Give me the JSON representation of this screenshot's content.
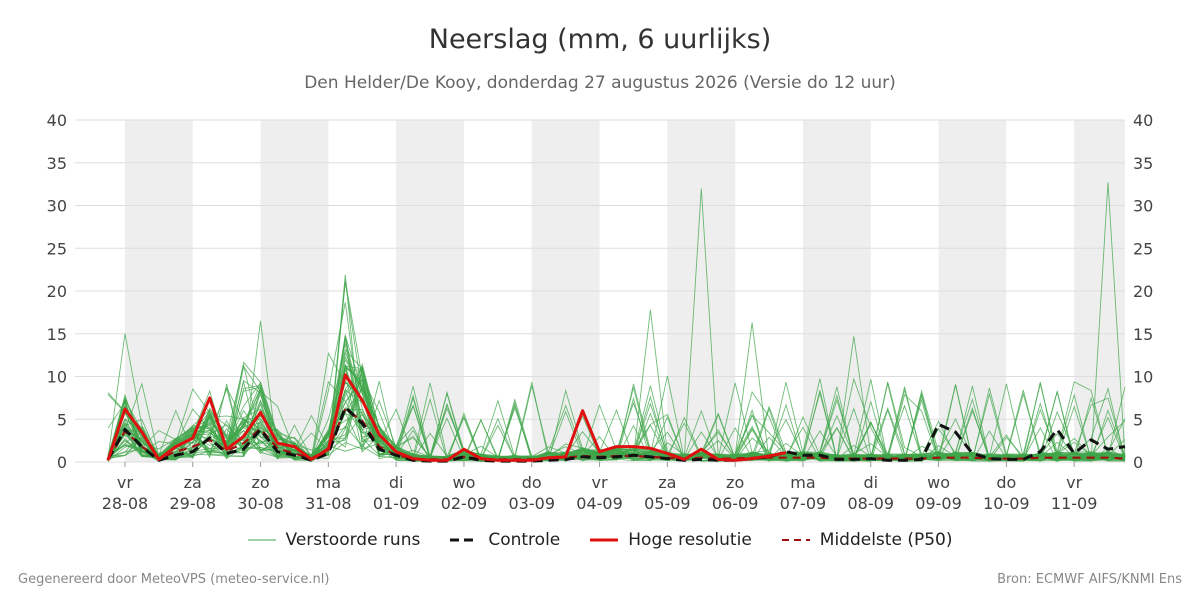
{
  "title": "Neerslag (mm, 6 uurlijks)",
  "subtitle": "Den Helder/De Kooy, donderdag 27 augustus 2026 (Versie do 12 uur)",
  "footer": {
    "left": "Gegenereerd door MeteoVPS (meteo-service.nl)",
    "right": "Bron: ECMWF AIFS/KNMI Ens"
  },
  "legend": [
    {
      "label": "Verstoorde runs",
      "color": "#3fa64a",
      "style": "thin"
    },
    {
      "label": "Controle",
      "color": "#111111",
      "style": "dashed-thick"
    },
    {
      "label": "Hoge resolutie",
      "color": "#e01010",
      "style": "solid-thick"
    },
    {
      "label": "Middelste (P50)",
      "color": "#a01010",
      "style": "dashed"
    }
  ],
  "colors": {
    "ensemble": "#3fa64a",
    "control": "#111111",
    "hires": "#e01010",
    "median": "#a01010",
    "weekend_band": "#eeeeee",
    "grid": "#dddddd"
  },
  "chart_data": {
    "type": "line",
    "step_hours": 6,
    "x_start_index": 0,
    "x_end_index": 60,
    "ylim": [
      0,
      40
    ],
    "yticks": [
      0,
      5,
      10,
      15,
      20,
      25,
      30,
      35,
      40
    ],
    "x_day_labels": [
      {
        "index": 1,
        "day": "vr",
        "date": "28-08"
      },
      {
        "index": 5,
        "day": "za",
        "date": "29-08"
      },
      {
        "index": 9,
        "day": "zo",
        "date": "30-08"
      },
      {
        "index": 13,
        "day": "ma",
        "date": "31-08"
      },
      {
        "index": 17,
        "day": "di",
        "date": "01-09"
      },
      {
        "index": 21,
        "day": "wo",
        "date": "02-09"
      },
      {
        "index": 25,
        "day": "do",
        "date": "03-09"
      },
      {
        "index": 29,
        "day": "vr",
        "date": "04-09"
      },
      {
        "index": 33,
        "day": "za",
        "date": "05-09"
      },
      {
        "index": 37,
        "day": "zo",
        "date": "06-09"
      },
      {
        "index": 41,
        "day": "ma",
        "date": "07-09"
      },
      {
        "index": 45,
        "day": "di",
        "date": "08-09"
      },
      {
        "index": 49,
        "day": "wo",
        "date": "09-09"
      },
      {
        "index": 53,
        "day": "do",
        "date": "10-09"
      },
      {
        "index": 57,
        "day": "vr",
        "date": "11-09"
      }
    ],
    "shaded_bands": [
      [
        1,
        5
      ],
      [
        9,
        13
      ],
      [
        17,
        21
      ],
      [
        25,
        29
      ],
      [
        33,
        37
      ],
      [
        41,
        45
      ],
      [
        49,
        53
      ],
      [
        57,
        60
      ]
    ],
    "series": [
      {
        "name": "Hoge resolutie",
        "x": [
          0,
          1,
          2,
          3,
          4,
          5,
          6,
          7,
          8,
          9,
          10,
          11,
          12,
          13,
          14,
          15,
          16,
          17,
          18,
          19,
          20,
          21,
          22,
          23,
          24,
          25,
          26,
          27,
          28,
          29,
          30,
          31,
          32,
          33,
          34,
          35,
          36,
          37,
          38,
          39,
          40
        ],
        "values": [
          0.2,
          6.2,
          3.5,
          0.3,
          1.8,
          2.8,
          7.5,
          1.5,
          3.0,
          5.8,
          2.2,
          1.8,
          0.3,
          1.5,
          10.2,
          7.2,
          3.2,
          1.2,
          0.4,
          0.2,
          0.2,
          1.5,
          0.4,
          0.2,
          0.2,
          0.2,
          0.5,
          0.6,
          6.0,
          1.2,
          1.8,
          1.8,
          1.6,
          1.0,
          0.3,
          1.5,
          0.3,
          0.2,
          0.4,
          0.7,
          1.1
        ]
      },
      {
        "name": "Controle",
        "x": [
          0,
          1,
          2,
          3,
          4,
          5,
          6,
          7,
          8,
          9,
          10,
          11,
          12,
          13,
          14,
          15,
          16,
          17,
          18,
          19,
          20,
          21,
          22,
          23,
          24,
          25,
          26,
          27,
          28,
          29,
          30,
          31,
          32,
          33,
          34,
          35,
          36,
          37,
          38,
          39,
          40,
          41,
          42,
          43,
          44,
          45,
          46,
          47,
          48,
          49,
          50,
          51,
          52,
          53,
          54,
          55,
          56,
          57,
          58,
          59,
          60
        ],
        "values": [
          0.3,
          3.8,
          1.8,
          0.2,
          0.8,
          1.2,
          2.8,
          1.0,
          1.5,
          3.8,
          1.2,
          0.8,
          0.2,
          1.0,
          6.4,
          4.5,
          1.5,
          0.8,
          0.2,
          0.1,
          0.1,
          0.6,
          0.2,
          0.1,
          0.1,
          0.1,
          0.2,
          0.3,
          0.6,
          0.5,
          0.6,
          0.8,
          0.6,
          0.4,
          0.2,
          0.3,
          0.2,
          0.2,
          0.4,
          0.6,
          1.2,
          0.8,
          0.8,
          0.3,
          0.3,
          0.4,
          0.2,
          0.2,
          0.3,
          4.4,
          3.5,
          1.0,
          0.4,
          0.3,
          0.3,
          1.2,
          3.8,
          1.0,
          2.6,
          1.5,
          1.8
        ]
      },
      {
        "name": "Middelste (P50)",
        "x": [
          0,
          1,
          2,
          3,
          4,
          5,
          6,
          7,
          8,
          9,
          10,
          11,
          12,
          13,
          14,
          15,
          16,
          17,
          18,
          19,
          20,
          21,
          22,
          23,
          24,
          25,
          26,
          27,
          28,
          29,
          30,
          31,
          32,
          33,
          34,
          35,
          36,
          37,
          38,
          39,
          40,
          41,
          42,
          43,
          44,
          45,
          46,
          47,
          48,
          49,
          50,
          51,
          52,
          53,
          54,
          55,
          56,
          57,
          58,
          59,
          60
        ],
        "values": [
          0.3,
          3.6,
          1.8,
          0.4,
          1.2,
          1.8,
          2.6,
          1.3,
          2.2,
          3.9,
          1.6,
          1.0,
          0.4,
          1.6,
          6.2,
          4.8,
          1.8,
          0.8,
          0.4,
          0.3,
          0.3,
          0.6,
          0.4,
          0.3,
          0.3,
          0.3,
          0.5,
          0.5,
          0.7,
          0.6,
          0.7,
          0.7,
          0.6,
          0.5,
          0.4,
          0.5,
          0.4,
          0.4,
          0.5,
          0.5,
          0.5,
          0.5,
          0.5,
          0.4,
          0.4,
          0.4,
          0.4,
          0.4,
          0.4,
          0.5,
          0.5,
          0.5,
          0.4,
          0.4,
          0.4,
          0.5,
          0.5,
          0.5,
          0.5,
          0.5,
          0.4
        ]
      }
    ],
    "ensemble_note_count": 50
  }
}
